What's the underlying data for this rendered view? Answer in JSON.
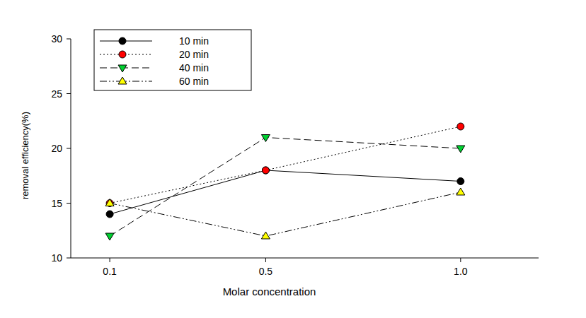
{
  "chart_data": {
    "type": "line",
    "x_label": "Molar concentration",
    "y_label": "removal efficiency(%)",
    "x": [
      0.1,
      0.5,
      1
    ],
    "xlim": [
      0,
      1.2
    ],
    "xticks": [
      0.1,
      0.5,
      {
        "value": 1,
        "label": "1.0"
      }
    ],
    "ylim": [
      10,
      30
    ],
    "yticks": [
      10,
      15,
      20,
      25,
      30
    ],
    "grid": false,
    "legend": "upper left",
    "series": [
      {
        "name": "10 min",
        "color": "#000000",
        "marker": "circle",
        "line_style": "solid",
        "values": [
          14,
          18,
          17
        ]
      },
      {
        "name": "20 min",
        "color": "#ff0000",
        "marker": "circle",
        "line_style": "dotted",
        "values": [
          15,
          18,
          22
        ]
      },
      {
        "name": "40 min",
        "color": "#00d030",
        "marker": "triangle-down",
        "line_style": "dashed",
        "values": [
          12,
          21,
          20
        ]
      },
      {
        "name": "60 min",
        "color": "#ffff00",
        "marker": "triangle-up",
        "line_style": "dashdotdot",
        "values": [
          15,
          12,
          16
        ]
      }
    ]
  }
}
